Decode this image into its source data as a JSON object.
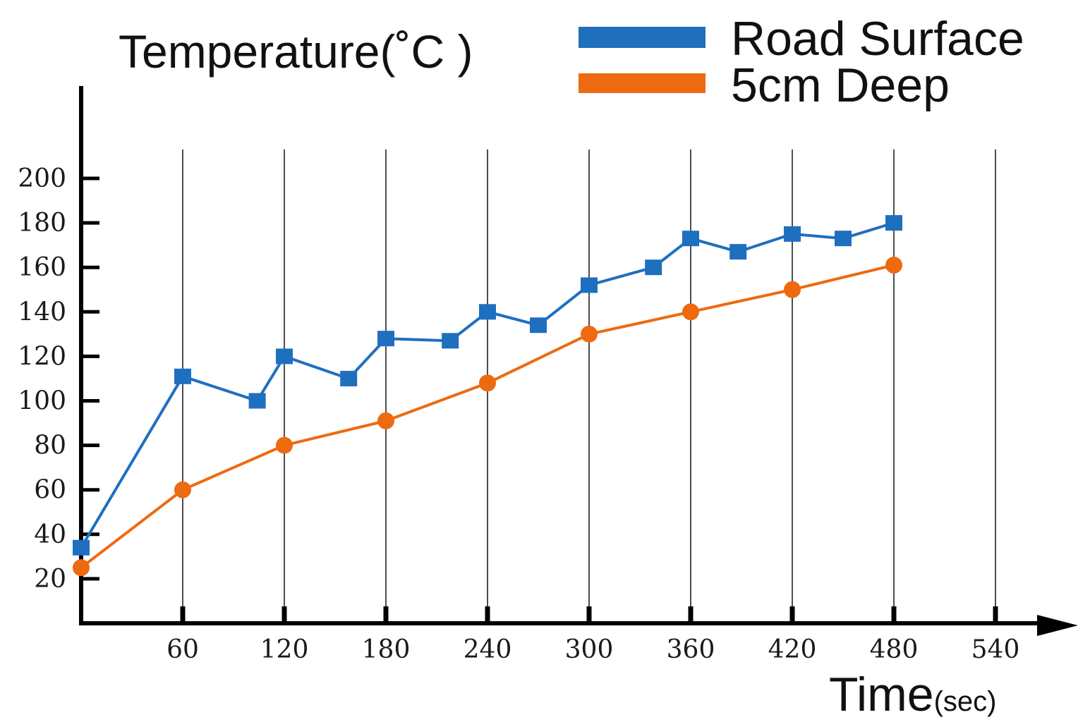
{
  "chart_data": {
    "type": "line",
    "ylabel": "Temperature(˚C )",
    "xlabel": "Time",
    "xlabel_unit": "(sec)",
    "xlim": [
      0,
      550
    ],
    "ylim": [
      0,
      220
    ],
    "x_ticks": [
      60,
      120,
      180,
      240,
      300,
      360,
      420,
      480,
      540
    ],
    "x_tick_labels": [
      "60",
      "120",
      "180",
      "240",
      "300",
      "360",
      "420",
      "480",
      "540"
    ],
    "y_ticks": [
      20,
      40,
      60,
      80,
      100,
      120,
      140,
      160,
      180,
      200
    ],
    "y_tick_labels": [
      "20",
      "40",
      "60",
      "80",
      "100",
      "120",
      "140",
      "160",
      "180",
      "200"
    ],
    "grid": "vertical",
    "legend_position": "top-right",
    "series": [
      {
        "name": "Road Surface",
        "color": "#1f6fbf",
        "marker": "square",
        "x": [
          0,
          60,
          104,
          120,
          158,
          180,
          218,
          240,
          270,
          300,
          338,
          360,
          388,
          420,
          450,
          480
        ],
        "y": [
          34,
          111,
          100,
          120,
          110,
          128,
          127,
          140,
          134,
          152,
          160,
          173,
          167,
          175,
          173,
          180
        ]
      },
      {
        "name": "5cm Deep",
        "color": "#ee6a10",
        "marker": "circle",
        "x": [
          0,
          60,
          120,
          180,
          240,
          300,
          360,
          420,
          480
        ],
        "y": [
          25,
          60,
          80,
          91,
          108,
          130,
          140,
          150,
          161
        ]
      }
    ]
  }
}
